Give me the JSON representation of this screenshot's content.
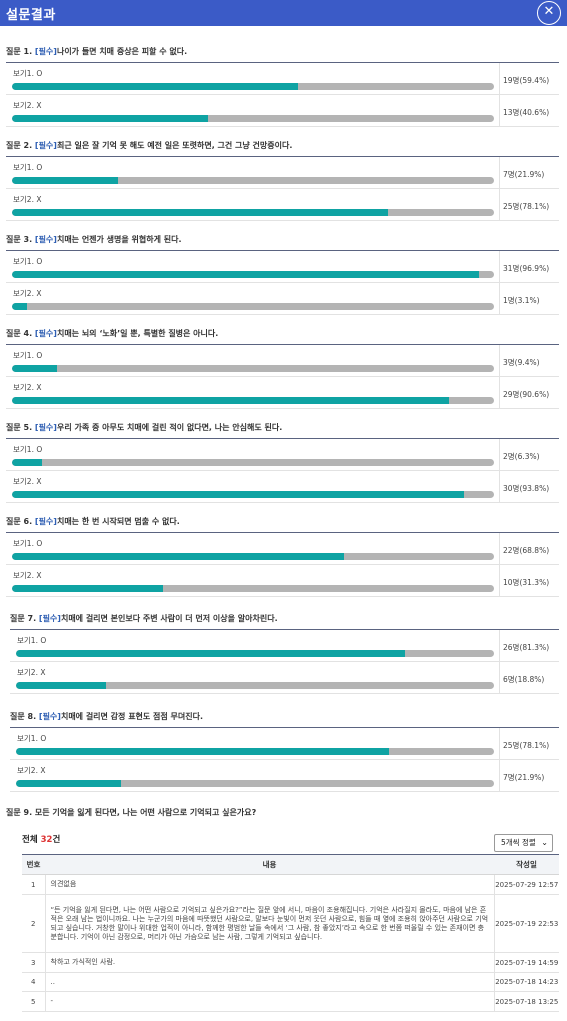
{
  "header": {
    "title": "설문결과",
    "close_icon": "✕"
  },
  "questions": [
    {
      "prefix": "질문 1. ",
      "required": "[필수]",
      "text": "나이가 들면 치매 증상은 피할 수 없다.",
      "options": [
        {
          "label": "보기1. O",
          "result": "19명(59.4%)",
          "percent": 59.4
        },
        {
          "label": "보기2. X",
          "result": "13명(40.6%)",
          "percent": 40.6
        }
      ]
    },
    {
      "prefix": "질문 2. ",
      "required": "[필수]",
      "text": "최근 일은 잘 기억 못 해도 예전 일은 또렷하면, 그건 그냥 건망증이다.",
      "options": [
        {
          "label": "보기1. O",
          "result": "7명(21.9%)",
          "percent": 21.9
        },
        {
          "label": "보기2. X",
          "result": "25명(78.1%)",
          "percent": 78.1
        }
      ]
    },
    {
      "prefix": "질문 3. ",
      "required": "[필수]",
      "text": "치매는 언젠가 생명을 위협하게 된다.",
      "options": [
        {
          "label": "보기1. O",
          "result": "31명(96.9%)",
          "percent": 96.9
        },
        {
          "label": "보기2. X",
          "result": "1명(3.1%)",
          "percent": 3.1
        }
      ]
    },
    {
      "prefix": "질문 4. ",
      "required": "[필수]",
      "text": "치매는 뇌의 ‘노화’일 뿐, 특별한 질병은 아니다.",
      "options": [
        {
          "label": "보기1. O",
          "result": "3명(9.4%)",
          "percent": 9.4
        },
        {
          "label": "보기2. X",
          "result": "29명(90.6%)",
          "percent": 90.6
        }
      ]
    },
    {
      "prefix": "질문 5. ",
      "required": "[필수]",
      "text": "우리 가족 중 아무도 치매에 걸린 적이 없다면, 나는 안심해도 된다.",
      "options": [
        {
          "label": "보기1. O",
          "result": "2명(6.3%)",
          "percent": 6.3
        },
        {
          "label": "보기2. X",
          "result": "30명(93.8%)",
          "percent": 93.8
        }
      ]
    },
    {
      "prefix": "질문 6. ",
      "required": "[필수]",
      "text": "치매는 한 번 시작되면 멈출 수 없다.",
      "options": [
        {
          "label": "보기1. O",
          "result": "22명(68.8%)",
          "percent": 68.8
        },
        {
          "label": "보기2. X",
          "result": "10명(31.3%)",
          "percent": 31.3
        }
      ]
    },
    {
      "prefix": "질문 7. ",
      "required": "[필수]",
      "text": "치매에 걸리면 본인보다 주변 사람이 더 먼저 이상을 알아차린다.",
      "options": [
        {
          "label": "보기1. O",
          "result": "26명(81.3%)",
          "percent": 81.3
        },
        {
          "label": "보기2. X",
          "result": "6명(18.8%)",
          "percent": 18.8
        }
      ]
    },
    {
      "prefix": "질문 8. ",
      "required": "[필수]",
      "text": "치매에 걸리면 감정 표현도 점점 무뎌진다.",
      "options": [
        {
          "label": "보기1. O",
          "result": "25명(78.1%)",
          "percent": 78.1
        },
        {
          "label": "보기2. X",
          "result": "7명(21.9%)",
          "percent": 21.9
        }
      ]
    }
  ],
  "q9": {
    "title": "질문 9. 모든 기억을 잃게 된다면, 나는 어떤 사람으로 기억되고 싶은가요?",
    "total_prefix": "전체 ",
    "total_count": "32",
    "total_suffix": "건",
    "sort_selected": "5개씩 정렬",
    "sort_icon": "chevron-down",
    "columns": [
      "번호",
      "내용",
      "작성일"
    ],
    "rows": [
      {
        "no": "1",
        "content": "의견없음",
        "date": "2025-07-29 12:57"
      },
      {
        "no": "2",
        "content": "“든 기억을 잃게 된다면, 나는 어떤 사람으로 기억되고 싶은가요?”라는 질문 앞에 서니, 마음이 조용해집니다. 기억은 사라질지 몰라도, 마음에 남은 흔적은 오래 남는 법이니까요. 나는 누군가의 마음에 따뜻했던 사람으로, 말보다 눈빛이 먼저 웃던 사람으로, 힘들 때 옆에 조용히 앉아주던 사람으로 기억되고 싶습니다. 거창한 말이나 위대한 업적이 아니라, 함께한 평범한 날들 속에서 ‘그 사람, 참 좋았지’라고 속으로 한 번쯤 떠올릴 수 있는 존재이면 충분합니다. 기억이 아닌 감정으로, 머리가 아닌 가슴으로 남는 사람, 그렇게 기억되고 싶습니다.",
        "date": "2025-07-19 22:53"
      },
      {
        "no": "3",
        "content": "착하고 가식적인 사람.",
        "date": "2025-07-19 14:59"
      },
      {
        "no": "4",
        "content": "..",
        "date": "2025-07-18 14:23"
      },
      {
        "no": "5",
        "content": "-",
        "date": "2025-07-18 13:25"
      }
    ]
  }
}
